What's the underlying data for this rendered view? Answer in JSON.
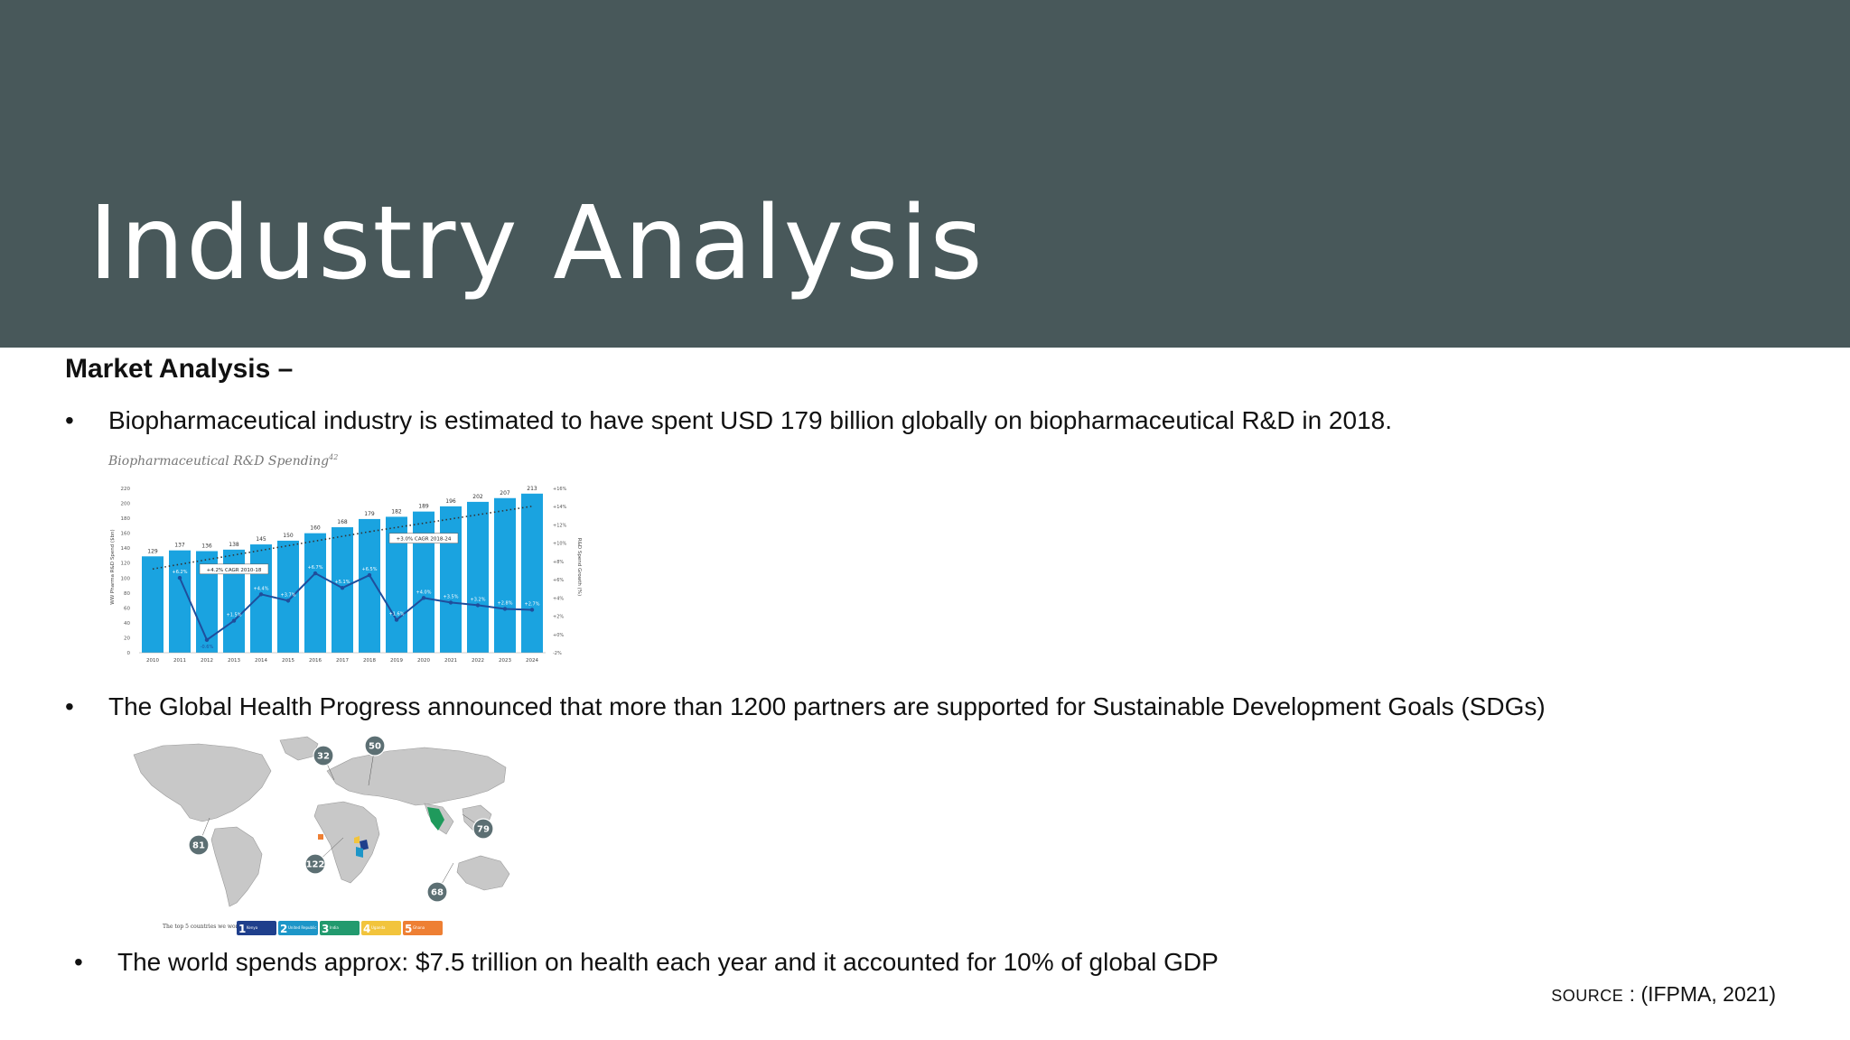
{
  "slide": {
    "title": "Industry Analysis",
    "subheading": "Market Analysis –",
    "bullet_char": "•",
    "bullets": [
      "Biopharmaceutical industry is estimated to have spent USD 179 billion globally on biopharmaceutical R&D in 2018.",
      "The Global Health Progress announced that more than 1200 partners are supported for Sustainable Development Goals (SDGs)",
      "The world spends approx: $7.5 trillion on health each year and it accounted for 10% of global GDP"
    ],
    "source_prefix": "Source",
    "source_rest": " : (IFPMA, 2021)",
    "colors": {
      "header": "#48585a",
      "bar": "#1aa3e0",
      "growth_line": "#1f4e9c"
    }
  },
  "chart_data": {
    "type": "bar",
    "title": "Biopharmaceutical R&D Spending",
    "title_superscript": "42",
    "categories": [
      "2010",
      "2011",
      "2012",
      "2013",
      "2014",
      "2015",
      "2016",
      "2017",
      "2018",
      "2019",
      "2020",
      "2021",
      "2022",
      "2023",
      "2024"
    ],
    "series": [
      {
        "values": [
          129,
          137,
          136,
          138,
          145,
          150,
          160,
          168,
          179,
          182,
          189,
          196,
          202,
          207,
          213
        ]
      },
      {
        "type": "line",
        "values": [
          null,
          6.2,
          -0.6,
          1.5,
          4.4,
          3.7,
          6.7,
          5.1,
          6.5,
          1.6,
          4.0,
          3.5,
          3.2,
          2.8,
          2.7
        ],
        "labels": [
          "",
          "+6.2%",
          "-0.6%",
          "+1.5%",
          "+4.4%",
          "+3.7%",
          "+6.7%",
          "+5.1%",
          "+6.5%",
          "+1.6%",
          "+4.0%",
          "+3.5%",
          "+3.2%",
          "+2.8%",
          "+2.7%"
        ]
      }
    ],
    "ylabel": "WW Pharma R&D Spend ($bn)",
    "y2label": "R&D Spend Growth (%)",
    "ylim": [
      0,
      220
    ],
    "y_ticks": [
      0,
      20,
      40,
      60,
      80,
      100,
      120,
      140,
      160,
      180,
      200,
      220
    ],
    "y2lim": [
      -2,
      16
    ],
    "y2_ticks": [
      "-2%",
      "+0%",
      "+2%",
      "+4%",
      "+6%",
      "+8%",
      "+10%",
      "+12%",
      "+14%",
      "+16%"
    ],
    "annotations": [
      "+4.2% CAGR 2010-18",
      "+3.0% CAGR 2018-24"
    ]
  },
  "map": {
    "counts": [
      "32",
      "50",
      "81",
      "79",
      "122",
      "68"
    ],
    "footer_label": "The top 5 countries we work in are...",
    "countries": [
      {
        "num": "1",
        "name": "Kenya",
        "color": "#1f3f8c"
      },
      {
        "num": "2",
        "name": "United Republic of Tanzania",
        "color": "#1d96c8"
      },
      {
        "num": "3",
        "name": "India",
        "color": "#229a6e"
      },
      {
        "num": "4",
        "name": "Uganda",
        "color": "#f2c43c"
      },
      {
        "num": "5",
        "name": "Ghana",
        "color": "#ee7f33"
      }
    ]
  }
}
